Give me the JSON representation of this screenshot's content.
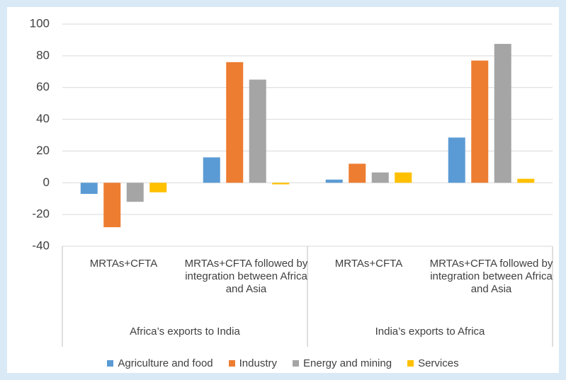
{
  "chart_data": {
    "type": "bar",
    "categories": [
      "MRTAs+CFTA",
      "MRTAs+CFTA followed by integration between Africa and Asia",
      "MRTAs+CFTA",
      "MRTAs+CFTA followed by integration between Africa and Asia"
    ],
    "category_groups": [
      "Africa’s exports to India",
      "India’s exports to Africa"
    ],
    "series": [
      {
        "name": "Agriculture and food",
        "color": "#5b9bd5",
        "values": [
          -7,
          16,
          2,
          28.5
        ]
      },
      {
        "name": "Industry",
        "color": "#ed7d31",
        "values": [
          -28,
          76,
          12,
          77
        ]
      },
      {
        "name": "Energy and mining",
        "color": "#a5a5a5",
        "values": [
          -12,
          65,
          6.5,
          87.5
        ]
      },
      {
        "name": "Services",
        "color": "#ffc000",
        "values": [
          -6,
          -1,
          6.5,
          2.5
        ]
      }
    ],
    "ylim": [
      -40,
      100
    ],
    "yticks": [
      -40,
      -20,
      0,
      20,
      40,
      60,
      80,
      100
    ],
    "grid": true,
    "legend": "bottom"
  }
}
